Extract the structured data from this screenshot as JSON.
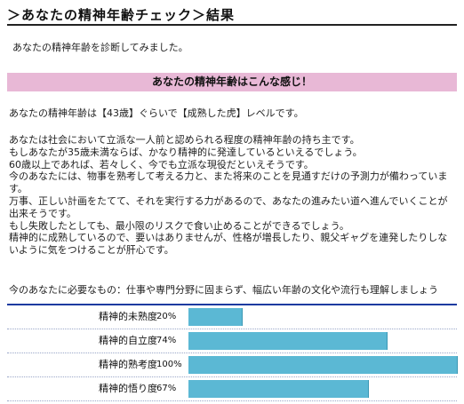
{
  "header": {
    "title": "＞あなたの精神年齢チェック＞結果"
  },
  "intro": "あなたの精神年齢を診断してみました。",
  "banner": "あなたの精神年齢はこんな感じ！",
  "result": "あなたの精神年齢は【43歳】ぐらいで【成熟した虎】レベルです。",
  "description": [
    "あなたは社会において立派な一人前と認められる程度の精神年齢の持ち主です。",
    "もしあなたが35歳未満ならば、かなり精神的に発達しているといえるでしょう。",
    "60歳以上であれば、若々しく、今でも立派な現役だといえそうです。",
    "今のあなたには、物事を熟考して考える力と、また将来のことを見通すだけの予測力が備わっていま",
    "す。",
    "万事、正しい計画をたてて、それを実行する力があるので、あなたの進みたい道へ進んでいくことが",
    "出来そうです。",
    "もし失敗したとしても、最小限のリスクで食い止めることができるでしょう。",
    "精神的に成熟しているので、要いはありませんが、性格が増長したり、親父ギャグを連発したりしな",
    "いように気をつけることが肝心です。"
  ],
  "need": "今のあなたに必要なもの：仕事や専門分野に固まらず、幅広い年齢の文化や流行も理解しましょう",
  "meters": [
    {
      "label": "精神的未熟度",
      "pct_text": "20%",
      "value": 20
    },
    {
      "label": "精神的自立度",
      "pct_text": "74%",
      "value": 74
    },
    {
      "label": "精神的熟考度",
      "pct_text": "100%",
      "value": 100
    },
    {
      "label": "精神的悟り度",
      "pct_text": "67%",
      "value": 67
    }
  ],
  "colors": {
    "banner": "#e8b8d6",
    "meter_bar": "#5bb8d4",
    "meter_rule": "#1a3aa0"
  }
}
